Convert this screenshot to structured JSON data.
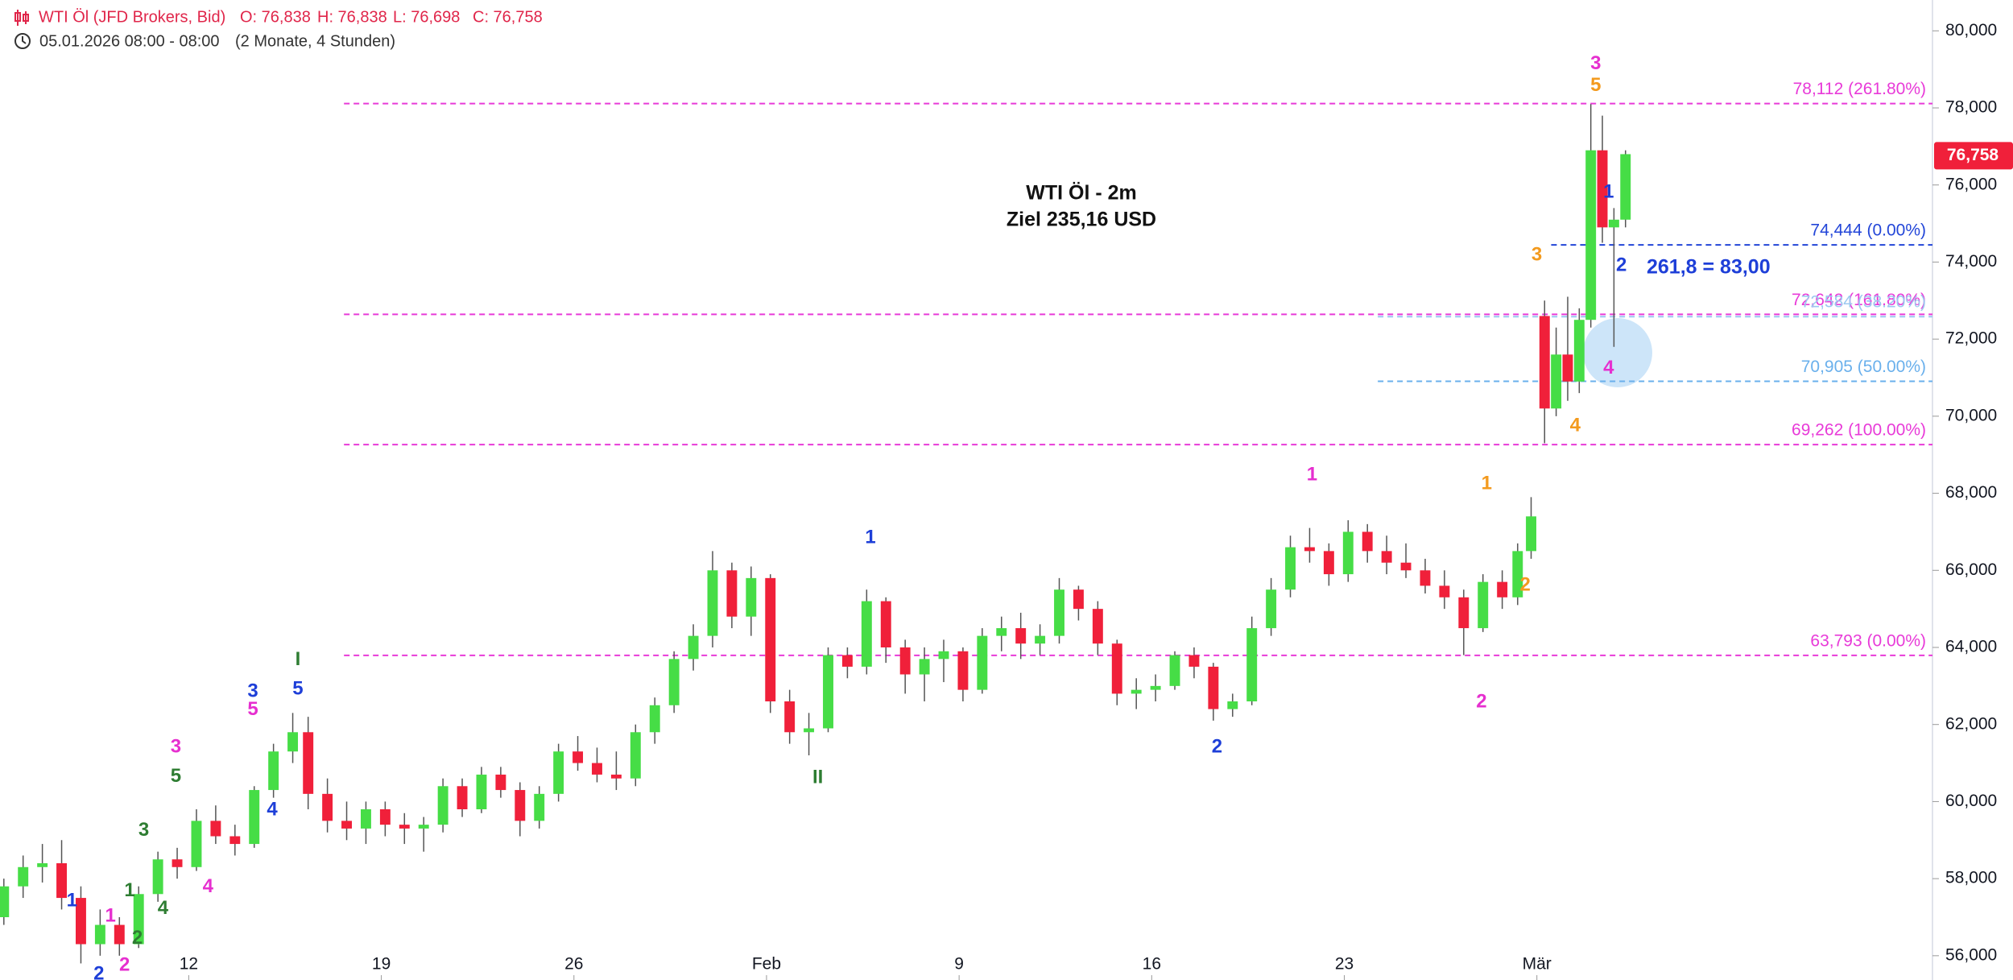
{
  "chart_data": {
    "type": "candlestick",
    "header": {
      "symbol": "WTI Öl (JFD Brokers, Bid)",
      "ohlc_labels": [
        "O: 76,838",
        "H: 76,838",
        "L: 76,698",
        "C: 76,758"
      ],
      "range": "05.01.2026 08:00 - 08:00",
      "span": "(2 Monate, 4 Stunden)"
    },
    "title": "WTI Öl - 2m",
    "subtitle": "Ziel 235,16 USD",
    "note": "261,8 = 83,00",
    "up_color": "#46dd46",
    "down_color": "#f0203a",
    "xlim": [
      -4.9,
      45.27
    ],
    "ylim": [
      55.37,
      80.8
    ],
    "xticks": [
      {
        "value": 0,
        "label": "12"
      },
      {
        "value": 5,
        "label": "19"
      },
      {
        "value": 10,
        "label": "26"
      },
      {
        "value": 15,
        "label": "Feb"
      },
      {
        "value": 20,
        "label": "9"
      },
      {
        "value": 25,
        "label": "16"
      },
      {
        "value": 30,
        "label": "23"
      },
      {
        "value": 35,
        "label": "Mär"
      }
    ],
    "yticks": [
      {
        "value": 56,
        "label": "56,000"
      },
      {
        "value": 58,
        "label": "58,000"
      },
      {
        "value": 60,
        "label": "60,000"
      },
      {
        "value": 62,
        "label": "62,000"
      },
      {
        "value": 64,
        "label": "64,000"
      },
      {
        "value": 66,
        "label": "66,000"
      },
      {
        "value": 68,
        "label": "68,000"
      },
      {
        "value": 70,
        "label": "70,000"
      },
      {
        "value": 72,
        "label": "72,000"
      },
      {
        "value": 74,
        "label": "74,000"
      },
      {
        "value": 76,
        "label": "76,000"
      },
      {
        "value": 78,
        "label": "78,000"
      },
      {
        "value": 80,
        "label": "80,000"
      }
    ],
    "last_price": {
      "value": 76.758,
      "label": "76,758"
    },
    "x": [
      -4.8,
      -4.3,
      -3.8,
      -3.3,
      -2.8,
      -2.3,
      -1.8,
      -1.3,
      -0.8,
      -0.3,
      0.2,
      0.7,
      1.2,
      1.7,
      2.2,
      2.7,
      3.1,
      3.6,
      4.1,
      4.6,
      5.1,
      5.6,
      6.1,
      6.6,
      7.1,
      7.6,
      8.1,
      8.6,
      9.1,
      9.6,
      10.1,
      10.6,
      11.1,
      11.6,
      12.1,
      12.6,
      13.1,
      13.6,
      14.1,
      14.6,
      15.1,
      15.6,
      16.1,
      16.6,
      17.1,
      17.6,
      18.1,
      18.6,
      19.1,
      19.6,
      20.1,
      20.6,
      21.1,
      21.6,
      22.1,
      22.6,
      23.1,
      23.6,
      24.1,
      24.6,
      25.1,
      25.6,
      26.1,
      26.6,
      27.1,
      27.6,
      28.1,
      28.6,
      29.1,
      29.6,
      30.1,
      30.6,
      31.1,
      31.6,
      32.1,
      32.6,
      33.1,
      33.6,
      34.1,
      34.5,
      34.85,
      35.2,
      35.5,
      35.8,
      36.1,
      36.4,
      36.7,
      37.0,
      37.3
    ],
    "ohlc": [
      [
        57.0,
        58.0,
        56.8,
        57.8
      ],
      [
        57.8,
        58.6,
        57.5,
        58.3
      ],
      [
        58.3,
        58.9,
        57.9,
        58.4
      ],
      [
        58.4,
        59.0,
        57.2,
        57.5
      ],
      [
        57.5,
        57.8,
        55.8,
        56.3
      ],
      [
        56.3,
        57.2,
        56.0,
        56.8
      ],
      [
        56.8,
        57.0,
        56.0,
        56.3
      ],
      [
        56.3,
        57.8,
        56.2,
        57.6
      ],
      [
        57.6,
        58.7,
        57.4,
        58.5
      ],
      [
        58.5,
        58.8,
        58.0,
        58.3
      ],
      [
        58.3,
        59.8,
        58.2,
        59.5
      ],
      [
        59.5,
        59.9,
        58.9,
        59.1
      ],
      [
        59.1,
        59.4,
        58.6,
        58.9
      ],
      [
        58.9,
        60.4,
        58.8,
        60.3
      ],
      [
        60.3,
        61.5,
        60.1,
        61.3
      ],
      [
        61.3,
        62.3,
        61.0,
        61.8
      ],
      [
        61.8,
        62.2,
        59.8,
        60.2
      ],
      [
        60.2,
        60.6,
        59.2,
        59.5
      ],
      [
        59.5,
        60.0,
        59.0,
        59.3
      ],
      [
        59.3,
        60.0,
        58.9,
        59.8
      ],
      [
        59.8,
        60.0,
        59.1,
        59.4
      ],
      [
        59.4,
        59.7,
        58.9,
        59.3
      ],
      [
        59.3,
        59.6,
        58.7,
        59.4
      ],
      [
        59.4,
        60.6,
        59.2,
        60.4
      ],
      [
        60.4,
        60.6,
        59.6,
        59.8
      ],
      [
        59.8,
        60.9,
        59.7,
        60.7
      ],
      [
        60.7,
        60.9,
        60.1,
        60.3
      ],
      [
        60.3,
        60.5,
        59.1,
        59.5
      ],
      [
        59.5,
        60.4,
        59.3,
        60.2
      ],
      [
        60.2,
        61.5,
        60.0,
        61.3
      ],
      [
        61.3,
        61.7,
        60.8,
        61.0
      ],
      [
        61.0,
        61.4,
        60.5,
        60.7
      ],
      [
        60.7,
        61.3,
        60.3,
        60.6
      ],
      [
        60.6,
        62.0,
        60.4,
        61.8
      ],
      [
        61.8,
        62.7,
        61.5,
        62.5
      ],
      [
        62.5,
        63.9,
        62.3,
        63.7
      ],
      [
        63.7,
        64.6,
        63.4,
        64.3
      ],
      [
        64.3,
        66.5,
        64.0,
        66.0
      ],
      [
        66.0,
        66.2,
        64.5,
        64.8
      ],
      [
        64.8,
        66.1,
        64.3,
        65.8
      ],
      [
        65.8,
        65.9,
        62.3,
        62.6
      ],
      [
        62.6,
        62.9,
        61.5,
        61.8
      ],
      [
        61.8,
        62.3,
        61.2,
        61.9
      ],
      [
        61.9,
        64.0,
        61.8,
        63.8
      ],
      [
        63.8,
        64.0,
        63.2,
        63.5
      ],
      [
        63.5,
        65.5,
        63.3,
        65.2
      ],
      [
        65.2,
        65.3,
        63.6,
        64.0
      ],
      [
        64.0,
        64.2,
        62.8,
        63.3
      ],
      [
        63.3,
        64.0,
        62.6,
        63.7
      ],
      [
        63.7,
        64.2,
        63.1,
        63.9
      ],
      [
        63.9,
        64.0,
        62.6,
        62.9
      ],
      [
        62.9,
        64.5,
        62.8,
        64.3
      ],
      [
        64.3,
        64.8,
        63.9,
        64.5
      ],
      [
        64.5,
        64.9,
        63.7,
        64.1
      ],
      [
        64.1,
        64.6,
        63.8,
        64.3
      ],
      [
        64.3,
        65.8,
        64.1,
        65.5
      ],
      [
        65.5,
        65.6,
        64.7,
        65.0
      ],
      [
        65.0,
        65.2,
        63.8,
        64.1
      ],
      [
        64.1,
        64.2,
        62.5,
        62.8
      ],
      [
        62.8,
        63.2,
        62.4,
        62.9
      ],
      [
        62.9,
        63.3,
        62.6,
        63.0
      ],
      [
        63.0,
        63.9,
        62.9,
        63.8
      ],
      [
        63.8,
        64.0,
        63.2,
        63.5
      ],
      [
        63.5,
        63.6,
        62.1,
        62.4
      ],
      [
        62.4,
        62.8,
        62.2,
        62.6
      ],
      [
        62.6,
        64.8,
        62.5,
        64.5
      ],
      [
        64.5,
        65.8,
        64.3,
        65.5
      ],
      [
        65.5,
        66.9,
        65.3,
        66.6
      ],
      [
        66.6,
        67.1,
        66.2,
        66.5
      ],
      [
        66.5,
        66.7,
        65.6,
        65.9
      ],
      [
        65.9,
        67.3,
        65.7,
        67.0
      ],
      [
        67.0,
        67.2,
        66.2,
        66.5
      ],
      [
        66.5,
        66.9,
        65.9,
        66.2
      ],
      [
        66.2,
        66.7,
        65.8,
        66.0
      ],
      [
        66.0,
        66.3,
        65.4,
        65.6
      ],
      [
        65.6,
        66.0,
        65.0,
        65.3
      ],
      [
        65.3,
        65.5,
        63.8,
        64.5
      ],
      [
        64.5,
        65.9,
        64.4,
        65.7
      ],
      [
        65.7,
        66.0,
        65.0,
        65.3
      ],
      [
        65.3,
        66.7,
        65.1,
        66.5
      ],
      [
        66.5,
        67.9,
        66.3,
        67.4
      ],
      [
        72.6,
        73.0,
        69.3,
        70.2
      ],
      [
        70.2,
        72.3,
        70.0,
        71.6
      ],
      [
        71.6,
        73.1,
        70.4,
        70.9
      ],
      [
        70.9,
        72.8,
        70.6,
        72.5
      ],
      [
        72.5,
        78.1,
        72.3,
        76.9
      ],
      [
        76.9,
        77.8,
        74.5,
        74.9
      ],
      [
        74.9,
        75.4,
        71.8,
        75.1
      ],
      [
        75.1,
        76.9,
        74.9,
        76.8
      ]
    ],
    "levels": [
      {
        "value": 78.112,
        "label": "78,112 (261.80%)",
        "color": "#e83ad8",
        "x": 4.03
      },
      {
        "value": 74.444,
        "label": "74,444 (0.00%)",
        "color": "#2346d8",
        "x": 35.37
      },
      {
        "value": 72.642,
        "label": "72,642 (161.80%)",
        "color": "#e83ad8",
        "x": 4.03
      },
      {
        "value": 72.584,
        "label": "72,584 (38.20%)",
        "color": "#9cc8f0",
        "x": 30.87
      },
      {
        "value": 70.905,
        "label": "70,905 (50.00%)",
        "color": "#6ab0ec",
        "x": 30.87
      },
      {
        "value": 69.262,
        "label": "69,262 (100.00%)",
        "color": "#e83ad8",
        "x": 4.03
      },
      {
        "value": 63.793,
        "label": "63,793 (0.00%)",
        "color": "#e83ad8",
        "x": 4.03
      }
    ],
    "annotations": [
      {
        "text": "1",
        "color": "#1e3fd8"
      },
      {
        "text": "2",
        "color": "#1e3fd8"
      },
      {
        "text": "1",
        "color": "#e62fcf"
      },
      {
        "text": "2",
        "color": "#e62fcf"
      },
      {
        "text": "1",
        "color": "#2e7d32"
      },
      {
        "text": "2",
        "color": "#2e7d32"
      },
      {
        "text": "3",
        "color": "#2e7d32"
      },
      {
        "text": "4",
        "color": "#2e7d32"
      },
      {
        "text": "3",
        "color": "#e62fcf"
      },
      {
        "text": "5",
        "color": "#2e7d32"
      },
      {
        "text": "4",
        "color": "#e62fcf"
      },
      {
        "text": "3",
        "color": "#1e3fd8"
      },
      {
        "text": "5",
        "color": "#e62fcf"
      },
      {
        "text": "4",
        "color": "#1e3fd8"
      },
      {
        "text": "I",
        "color": "#2e7d32"
      },
      {
        "text": "5",
        "color": "#1e3fd8"
      },
      {
        "text": "II",
        "color": "#2e7d32"
      },
      {
        "text": "1",
        "color": "#1e3fd8"
      },
      {
        "text": "2",
        "color": "#1e3fd8"
      },
      {
        "text": "1",
        "color": "#e62fcf"
      },
      {
        "text": "2",
        "color": "#e62fcf"
      },
      {
        "text": "1",
        "color": "#f39a1e"
      },
      {
        "text": "2",
        "color": "#f39a1e"
      },
      {
        "text": "3",
        "color": "#f39a1e"
      },
      {
        "text": "4",
        "color": "#f39a1e"
      },
      {
        "text": "3",
        "color": "#e62fcf"
      },
      {
        "text": "5",
        "color": "#f39a1e"
      },
      {
        "text": "1",
        "color": "#1e3fd8"
      },
      {
        "text": "2",
        "color": "#1e3fd8"
      },
      {
        "text": "4",
        "color": "#e62fcf"
      }
    ]
  }
}
